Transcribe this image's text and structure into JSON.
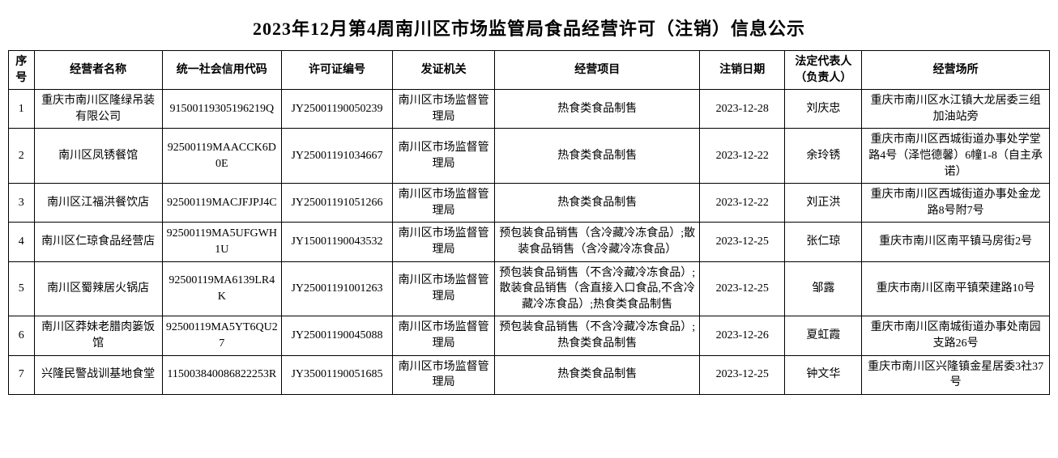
{
  "title": "2023年12月第4周南川区市场监管局食品经营许可（注销）信息公示",
  "columns": {
    "seq": "序号",
    "name": "经营者名称",
    "code": "统一社会信用代码",
    "lic": "许可证编号",
    "auth": "发证机关",
    "scope": "经营项目",
    "date": "注销日期",
    "rep": "法定代表人（负责人）",
    "addr": "经营场所"
  },
  "rows": [
    {
      "seq": "1",
      "name": "重庆市南川区隆绿吊装有限公司",
      "code": "91500119305196219Q",
      "lic": "JY25001190050239",
      "auth": "南川区市场监督管理局",
      "scope": "热食类食品制售",
      "date": "2023-12-28",
      "rep": "刘庆忠",
      "addr": "重庆市南川区水江镇大龙居委三组加油站旁"
    },
    {
      "seq": "2",
      "name": "南川区凤锈餐馆",
      "code": "92500119MAACCK6D0E",
      "lic": "JY25001191034667",
      "auth": "南川区市场监督管理局",
      "scope": "热食类食品制售",
      "date": "2023-12-22",
      "rep": "余玲锈",
      "addr": "重庆市南川区西城街道办事处学堂路4号（泽恺德馨）6幢1-8（自主承诺）"
    },
    {
      "seq": "3",
      "name": "南川区江福洪餐饮店",
      "code": "92500119MACJFJPJ4C",
      "lic": "JY25001191051266",
      "auth": "南川区市场监督管理局",
      "scope": "热食类食品制售",
      "date": "2023-12-22",
      "rep": "刘正洪",
      "addr": "重庆市南川区西城街道办事处金龙路8号附7号"
    },
    {
      "seq": "4",
      "name": "南川区仁琼食品经营店",
      "code": "92500119MA5UFGWH1U",
      "lic": "JY15001190043532",
      "auth": "南川区市场监督管理局",
      "scope": "预包装食品销售（含冷藏冷冻食品）;散装食品销售（含冷藏冷冻食品）",
      "date": "2023-12-25",
      "rep": "张仁琼",
      "addr": "重庆市南川区南平镇马房街2号"
    },
    {
      "seq": "5",
      "name": "南川区蜀辣居火锅店",
      "code": "92500119MA6139LR4K",
      "lic": "JY25001191001263",
      "auth": "南川区市场监督管理局",
      "scope": "预包装食品销售（不含冷藏冷冻食品）;散装食品销售（含直接入口食品,不含冷藏冷冻食品）;热食类食品制售",
      "date": "2023-12-25",
      "rep": "邹露",
      "addr": "重庆市南川区南平镇荣建路10号"
    },
    {
      "seq": "6",
      "name": "南川区莽妹老腊肉篓饭馆",
      "code": "92500119MA5YT6QU27",
      "lic": "JY25001190045088",
      "auth": "南川区市场监督管理局",
      "scope": "预包装食品销售（不含冷藏冷冻食品）;热食类食品制售",
      "date": "2023-12-26",
      "rep": "夏虹霞",
      "addr": "重庆市南川区南城街道办事处南园支路26号"
    },
    {
      "seq": "7",
      "name": "兴隆民警战训基地食堂",
      "code": "115003840086822253R",
      "lic": "JY35001190051685",
      "auth": "南川区市场监督管理局",
      "scope": "热食类食品制售",
      "date": "2023-12-25",
      "rep": "钟文华",
      "addr": "重庆市南川区兴隆镇金星居委3社37号"
    }
  ],
  "style": {
    "title_fontsize": 22,
    "cell_fontsize": 14,
    "border_color": "#000000",
    "background_color": "#ffffff",
    "text_color": "#000000",
    "font_family": "SimSun"
  }
}
